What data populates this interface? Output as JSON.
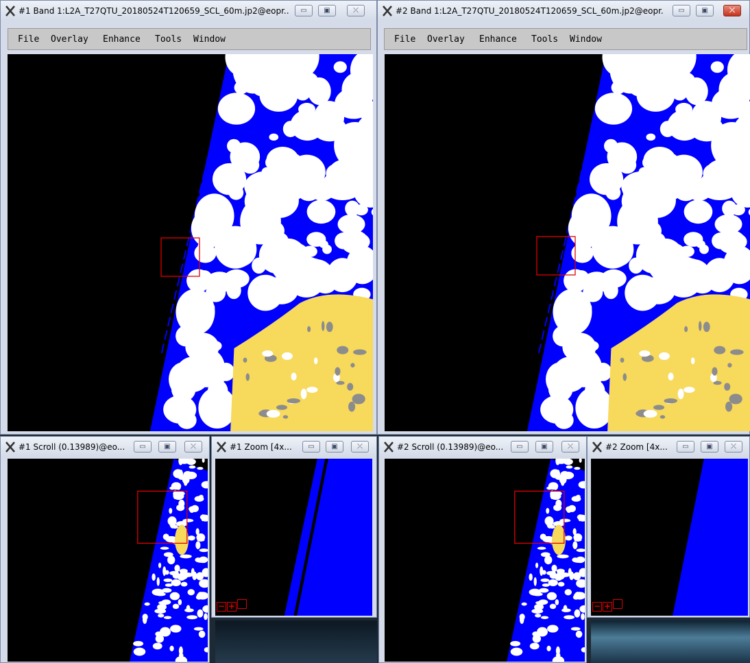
{
  "windows": {
    "band1": {
      "title": "#1 Band 1:L2A_T27QTU_20180524T120659_SCL_60m.jp2@eopr..."
    },
    "band2": {
      "title": "#2 Band 1:L2A_T27QTU_20180524T120659_SCL_60m.jp2@eopr..."
    },
    "scroll1": {
      "title": "#1 Scroll (0.13989)@eo..."
    },
    "zoom1": {
      "title": "#1 Zoom [4x..."
    },
    "scroll2": {
      "title": "#2 Scroll (0.13989)@eo..."
    },
    "zoom2": {
      "title": "#2 Zoom [4x..."
    }
  },
  "menu": [
    "File",
    "Overlay",
    "Enhance",
    "Tools",
    "Window"
  ],
  "window_controls": {
    "minimize": "▭",
    "maximize": "▣",
    "close": "⤫"
  },
  "zoom_buttons": [
    "−",
    "+",
    " "
  ],
  "colors": {
    "no_data": "#000000",
    "water": "#0000ff",
    "cloud": "#ffffff",
    "bare_soil": "#f7d95c",
    "cloud_shadow": "#8c8c8c",
    "selection_box": "#e00000",
    "close_active": "#c4331f"
  },
  "icons": {
    "app": "x-logo-icon"
  }
}
